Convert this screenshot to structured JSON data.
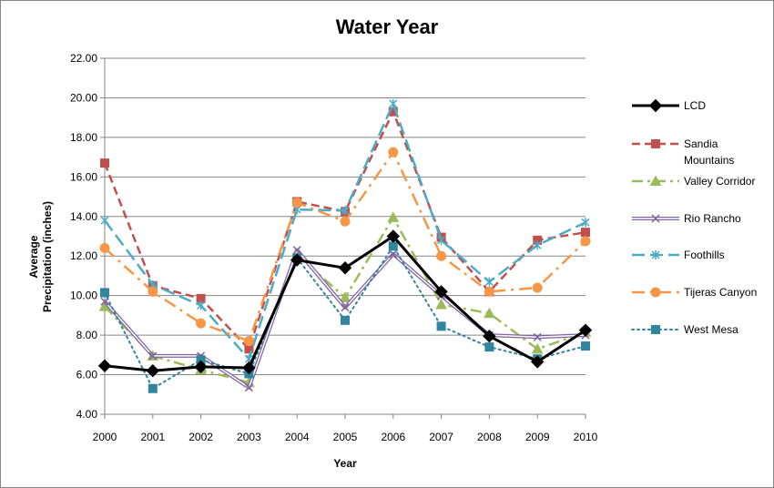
{
  "chart_data": {
    "type": "line",
    "title": "Water Year",
    "xlabel": "Year",
    "ylabel_lines": [
      "Average",
      "Precipitation (inches)"
    ],
    "x": [
      "2000",
      "2001",
      "2002",
      "2003",
      "2004",
      "2005",
      "2006",
      "2007",
      "2008",
      "2009",
      "2010"
    ],
    "ylim": [
      4,
      22
    ],
    "ytick_labels": [
      "4.00",
      "6.00",
      "8.00",
      "10.00",
      "12.00",
      "14.00",
      "16.00",
      "18.00",
      "20.00",
      "22.00"
    ],
    "grid": "horizontal",
    "legend_position": "right",
    "series": [
      {
        "name": "LCD",
        "color": "#000000",
        "dash": "solid",
        "marker": "diamond",
        "width": 3,
        "values": [
          6.45,
          6.2,
          6.4,
          6.35,
          11.8,
          11.4,
          13.0,
          10.2,
          7.95,
          6.65,
          8.25
        ]
      },
      {
        "name_lines": [
          "Sandia",
          "Mountains"
        ],
        "color": "#C0504D",
        "dash": "dash",
        "marker": "square",
        "width": 2.5,
        "values": [
          16.7,
          10.5,
          9.85,
          7.3,
          14.75,
          14.25,
          19.3,
          12.95,
          10.2,
          12.8,
          13.2
        ]
      },
      {
        "name": "Valley Corridor",
        "color": "#9BBB59",
        "dash": "dashdot",
        "marker": "triangle",
        "width": 2.5,
        "values": [
          9.45,
          6.95,
          6.25,
          5.6,
          12.05,
          9.9,
          13.95,
          9.55,
          9.1,
          7.3,
          8.15
        ]
      },
      {
        "name": "Rio Rancho",
        "color": "#8064A2",
        "dash": "double",
        "marker": "x",
        "width": 1.5,
        "values": [
          9.7,
          6.95,
          6.95,
          5.35,
          12.3,
          9.4,
          12.1,
          10.0,
          8.0,
          7.9,
          8.0
        ]
      },
      {
        "name": "Foothills",
        "color": "#4BACC6",
        "dash": "longdash",
        "marker": "star",
        "width": 2.5,
        "values": [
          13.8,
          10.55,
          9.5,
          6.8,
          14.35,
          14.3,
          19.7,
          12.8,
          10.7,
          12.55,
          13.7
        ]
      },
      {
        "name": "Tijeras Canyon",
        "color": "#F79646",
        "dash": "longdashdot",
        "marker": "circle",
        "width": 2.5,
        "values": [
          12.4,
          10.2,
          8.6,
          7.7,
          14.7,
          13.75,
          17.25,
          12.0,
          10.2,
          10.4,
          12.75
        ]
      },
      {
        "name": "West Mesa",
        "color": "#31859C",
        "dash": "dot",
        "marker": "square",
        "width": 2,
        "values": [
          10.15,
          5.3,
          6.75,
          6.05,
          11.9,
          8.75,
          12.5,
          8.45,
          7.4,
          6.8,
          7.45
        ]
      }
    ]
  }
}
